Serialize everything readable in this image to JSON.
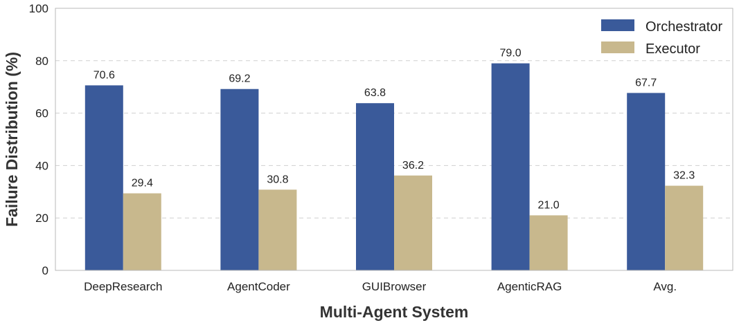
{
  "chart_data": {
    "type": "bar",
    "title": "",
    "xlabel": "Multi-Agent System",
    "ylabel": "Failure Distribution (%)",
    "ylim": [
      0,
      100
    ],
    "yticks": [
      "0",
      "20",
      "40",
      "60",
      "80",
      "100"
    ],
    "grid": "horizontal dashed",
    "legend_position": "top-right",
    "categories": [
      "DeepResearch",
      "AgentCoder",
      "GUIBrowser",
      "AgenticRAG",
      "Avg."
    ],
    "series": [
      {
        "name": "Orchestrator",
        "color": "#3a5a9a",
        "values": [
          70.6,
          69.2,
          63.8,
          79.0,
          67.7
        ],
        "labels": [
          "70.6",
          "69.2",
          "63.8",
          "79.0",
          "67.7"
        ]
      },
      {
        "name": "Executor",
        "color": "#c8b88d",
        "values": [
          29.4,
          30.8,
          36.2,
          21.0,
          32.3
        ],
        "labels": [
          "29.4",
          "30.8",
          "36.2",
          "21.0",
          "32.3"
        ]
      }
    ]
  }
}
